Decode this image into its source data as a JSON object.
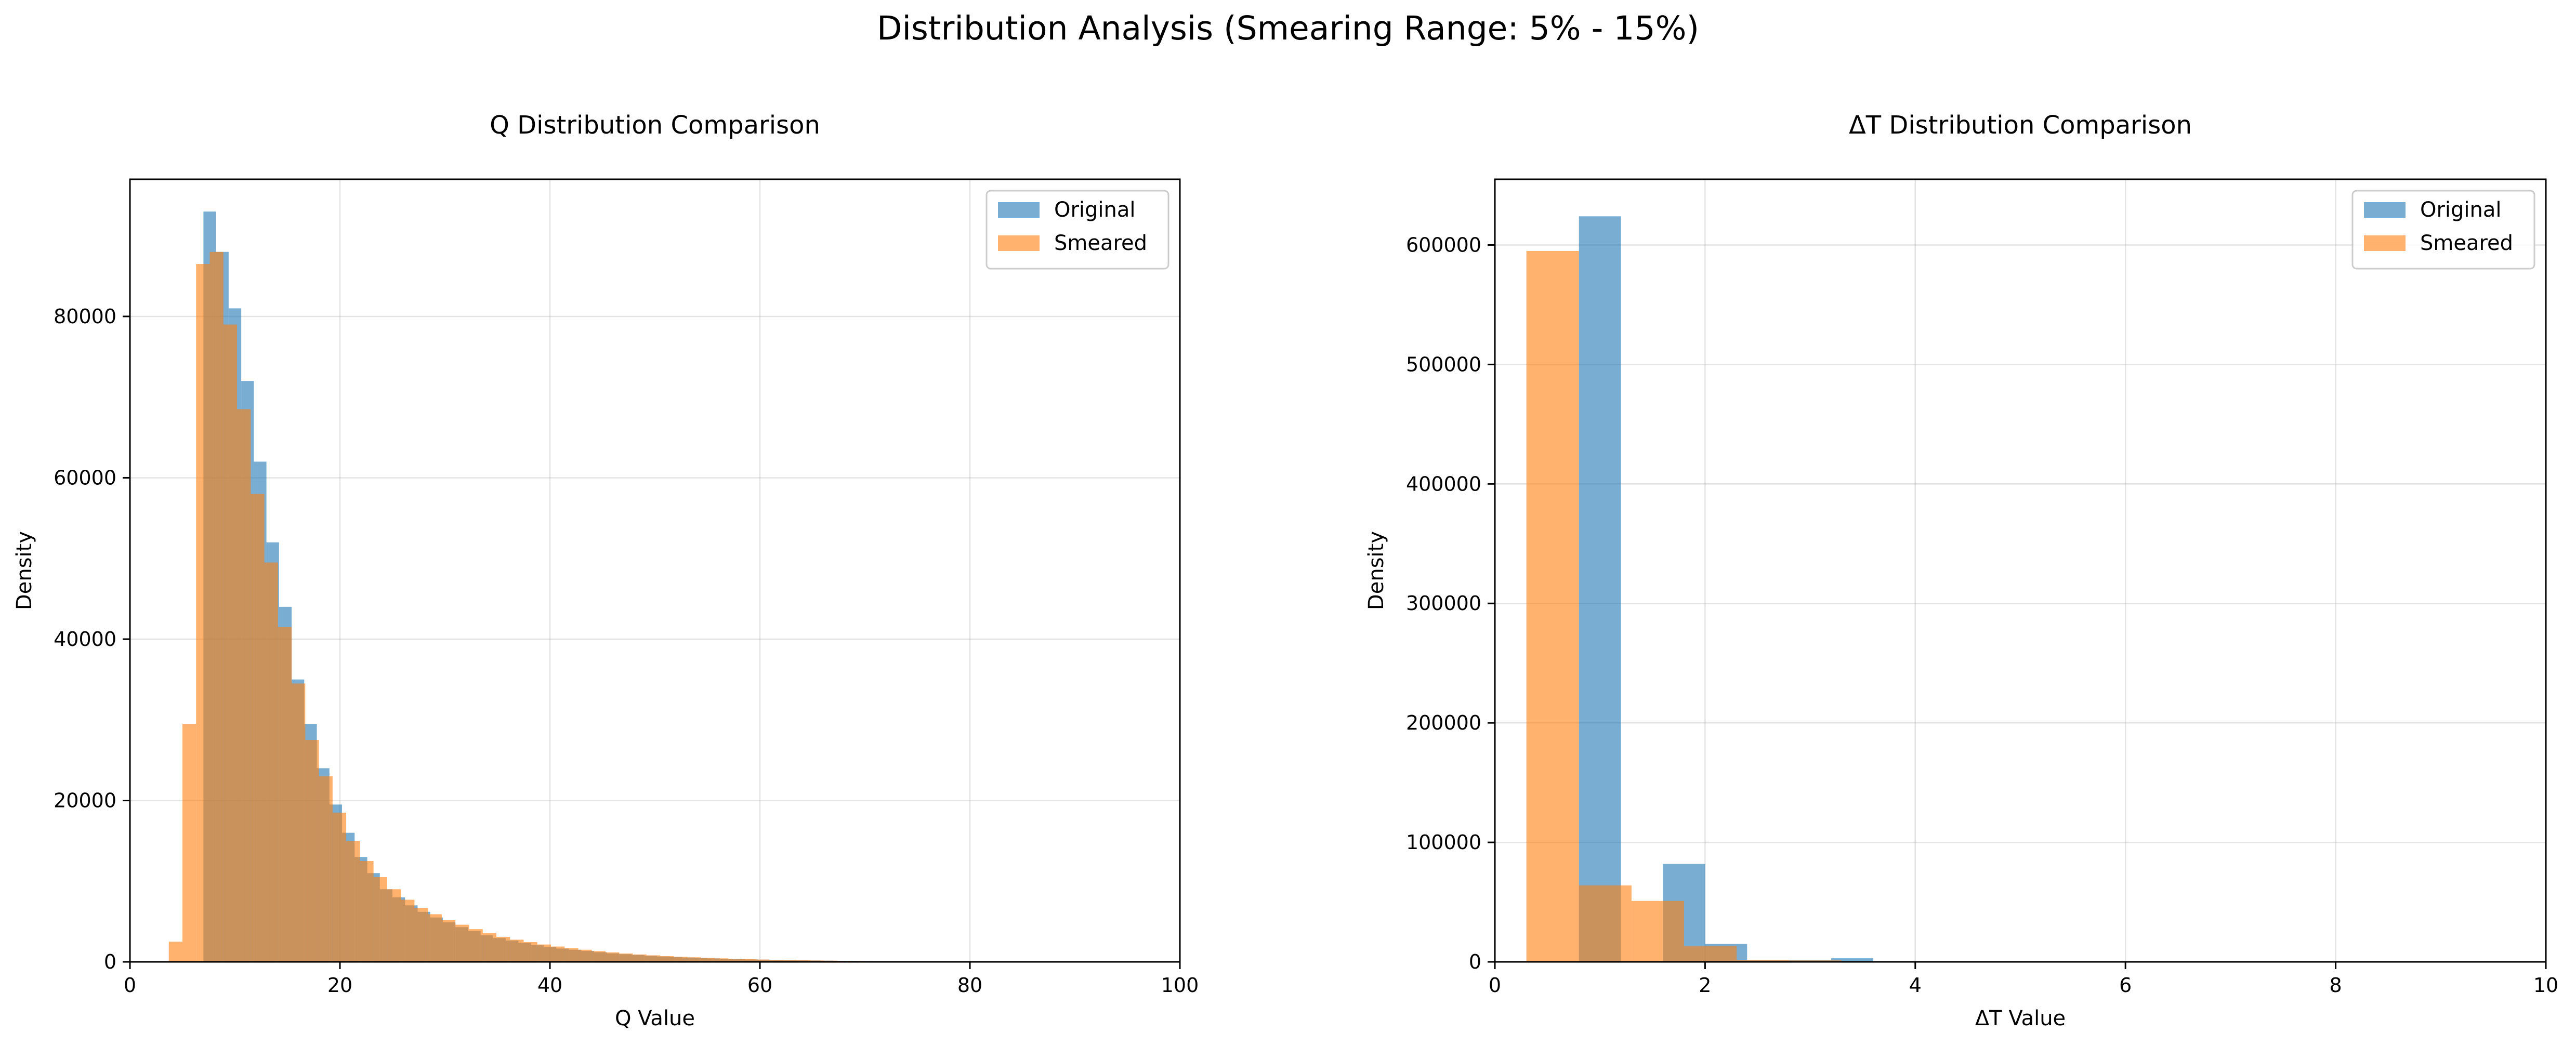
{
  "figure": {
    "suptitle": "Distribution Analysis (Smearing Range: 5% - 15%)"
  },
  "chart_data": [
    {
      "type": "bar",
      "title": "Q Distribution Comparison",
      "xlabel": "Q Value",
      "ylabel": "Density",
      "xlim": [
        0,
        100
      ],
      "ylim": [
        0,
        97000
      ],
      "xticks": [
        0,
        20,
        40,
        60,
        80,
        100
      ],
      "yticks": [
        0,
        20000,
        40000,
        60000,
        80000
      ],
      "grid": true,
      "legend": "top-right",
      "series": [
        {
          "name": "Original",
          "color": "#1f77b4",
          "alpha": 0.6,
          "bin_width": 1.2,
          "bin_start": 5.8,
          "values": [
            0,
            93000,
            88000,
            81000,
            72000,
            62000,
            52000,
            44000,
            35000,
            29500,
            24000,
            19500,
            16000,
            13000,
            11000,
            9000,
            8000,
            7000,
            6200,
            5500,
            4900,
            4300,
            3800,
            3300,
            2950,
            2650,
            2350,
            2100,
            1850,
            1650,
            1500,
            1350,
            1200,
            1050,
            950,
            850,
            750,
            670,
            600,
            540,
            480,
            430,
            380,
            340,
            300,
            270,
            240,
            215,
            190,
            170,
            150,
            130,
            115,
            100,
            90,
            80,
            70,
            60,
            50,
            45,
            40,
            35,
            30,
            25,
            20,
            18,
            15,
            12,
            10,
            8,
            6,
            5,
            4,
            3,
            2,
            2,
            1,
            1
          ]
        },
        {
          "name": "Smeared",
          "color": "#ff7f0e",
          "alpha": 0.6,
          "bin_width": 1.3,
          "bin_start": 3.7,
          "values": [
            2500,
            29500,
            86500,
            88000,
            79000,
            68500,
            58000,
            49500,
            41500,
            34500,
            27500,
            23000,
            18500,
            15000,
            12500,
            10500,
            9000,
            7700,
            6700,
            5900,
            5200,
            4600,
            4050,
            3550,
            3100,
            2750,
            2450,
            2150,
            1900,
            1700,
            1500,
            1330,
            1180,
            1040,
            920,
            810,
            710,
            630,
            560,
            490,
            430,
            380,
            330,
            290,
            255,
            225,
            195,
            170,
            150,
            130,
            112,
            96,
            82,
            70,
            60,
            50,
            42,
            35,
            28,
            22,
            17,
            13,
            9,
            6,
            4,
            2,
            1
          ]
        }
      ]
    },
    {
      "type": "bar",
      "title": "ΔT Distribution Comparison",
      "xlabel": "ΔT Value",
      "ylabel": "Density",
      "xlim": [
        0,
        10
      ],
      "ylim": [
        0,
        655000
      ],
      "xticks": [
        0,
        2,
        4,
        6,
        8,
        10
      ],
      "yticks": [
        0,
        100000,
        200000,
        300000,
        400000,
        500000,
        600000
      ],
      "grid": true,
      "legend": "top-right",
      "series": [
        {
          "name": "Original",
          "color": "#1f77b4",
          "alpha": 0.6,
          "bin_width": 0.4,
          "bin_start": 0.8,
          "values": [
            624000,
            0,
            82000,
            15000,
            1500,
            1500,
            3000,
            300,
            100,
            50,
            20,
            10,
            5,
            2,
            1
          ]
        },
        {
          "name": "Smeared",
          "color": "#ff7f0e",
          "alpha": 0.6,
          "bin_width": 0.5,
          "bin_start": 0.3,
          "values": [
            595000,
            64000,
            51000,
            13000,
            1500,
            1200,
            400,
            100,
            50,
            20,
            10
          ]
        }
      ]
    }
  ]
}
